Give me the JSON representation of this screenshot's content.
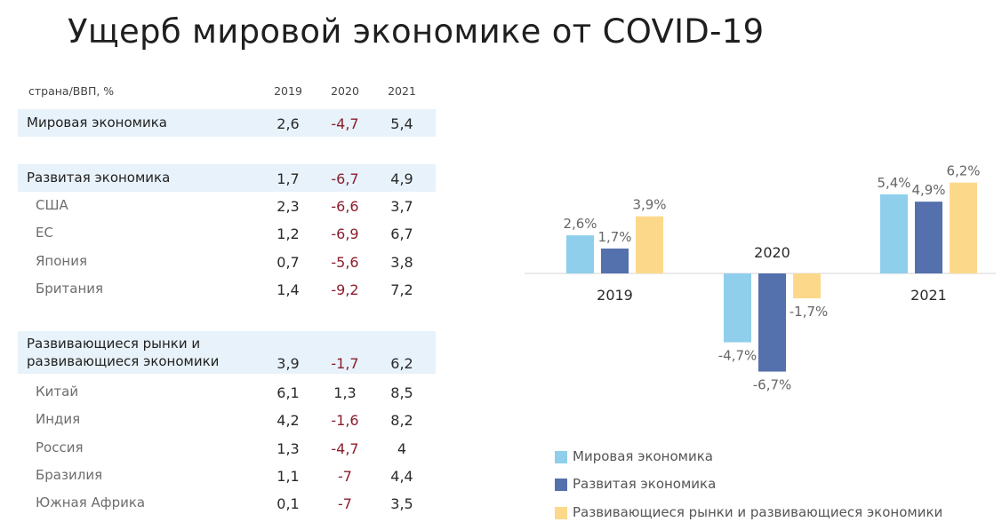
{
  "title": "Ущерб мировой экономике от COVID-19",
  "table": {
    "header_label": "страна/ВВП, %",
    "years": [
      "2019",
      "2020",
      "2021"
    ],
    "rows": [
      {
        "label": "Мировая экономика",
        "v": [
          "2,6",
          "-4,7",
          "5,4"
        ],
        "kind": "group"
      },
      {
        "label": "Развитая экономика",
        "v": [
          "1,7",
          "-6,7",
          "4,9"
        ],
        "kind": "group"
      },
      {
        "label": "США",
        "v": [
          "2,3",
          "-6,6",
          "3,7"
        ],
        "kind": "sub"
      },
      {
        "label": "ЕС",
        "v": [
          "1,2",
          "-6,9",
          "6,7"
        ],
        "kind": "sub"
      },
      {
        "label": "Япония",
        "v": [
          "0,7",
          "-5,6",
          "3,8"
        ],
        "kind": "sub"
      },
      {
        "label": "Британия",
        "v": [
          "1,4",
          "-9,2",
          "7,2"
        ],
        "kind": "sub"
      },
      {
        "label_line1": "Развивающиеся рынки и",
        "label_line2": "развивающиеся экономики",
        "v": [
          "3,9",
          "-1,7",
          "6,2"
        ],
        "kind": "group2"
      },
      {
        "label": "Китай",
        "v": [
          "6,1",
          "1,3",
          "8,5"
        ],
        "kind": "sub"
      },
      {
        "label": "Индия",
        "v": [
          "4,2",
          "-1,6",
          "8,2"
        ],
        "kind": "sub"
      },
      {
        "label": "Россия",
        "v": [
          "1,3",
          "-4,7",
          "4"
        ],
        "kind": "sub"
      },
      {
        "label": "Бразилия",
        "v": [
          "1,1",
          "-7",
          "4,4"
        ],
        "kind": "sub"
      },
      {
        "label": "Южная Африка",
        "v": [
          "0,1",
          "-7",
          "3,5"
        ],
        "kind": "sub"
      }
    ]
  },
  "chart_data": {
    "type": "bar",
    "categories": [
      "2019",
      "2020",
      "2021"
    ],
    "series": [
      {
        "name": "Мировая экономика",
        "values": [
          2.6,
          -4.7,
          5.4
        ],
        "labels": [
          "2,6%",
          "-4,7%",
          "5,4%"
        ],
        "color": "#8fcfec"
      },
      {
        "name": "Развитая экономика",
        "values": [
          1.7,
          -6.7,
          4.9
        ],
        "labels": [
          "1,7%",
          "-6,7%",
          "4,9%"
        ],
        "color": "#5470ad"
      },
      {
        "name": "Развивающиеся рынки и развивающиеся экономики",
        "values": [
          3.9,
          -1.7,
          6.2
        ],
        "labels": [
          "3,9%",
          "-1,7%",
          "6,2%"
        ],
        "color": "#fcd98a"
      }
    ],
    "ylim": [
      -7,
      6.5
    ],
    "grid": false,
    "legend_position": "bottom"
  }
}
